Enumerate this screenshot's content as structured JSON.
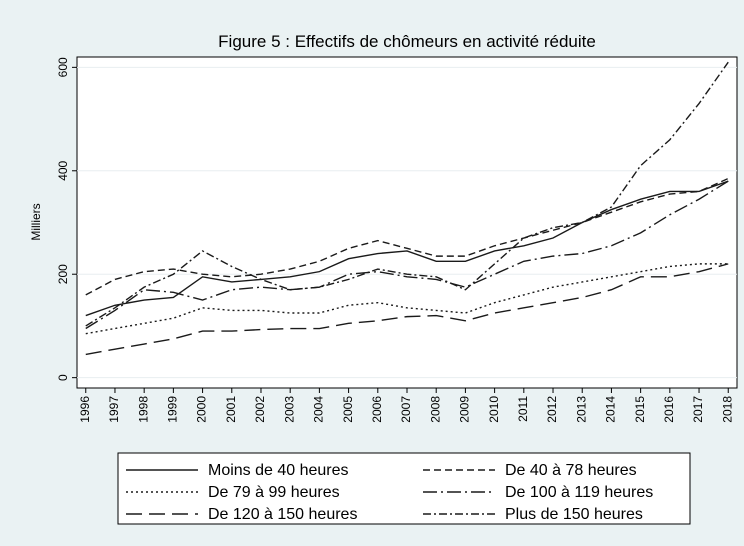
{
  "chart_data": {
    "type": "line",
    "title": "Figure 5 : Effectifs de chômeurs en activité réduite",
    "y_label": "Milliers",
    "x": [
      1996,
      1997,
      1998,
      1999,
      2000,
      2001,
      2002,
      2003,
      2004,
      2005,
      2006,
      2007,
      2008,
      2009,
      2010,
      2011,
      2012,
      2013,
      2014,
      2015,
      2016,
      2017,
      2018
    ],
    "xlim": [
      1995.7,
      2018.3
    ],
    "xticks": [
      1996,
      1997,
      1998,
      1999,
      2000,
      2001,
      2002,
      2003,
      2004,
      2005,
      2006,
      2007,
      2008,
      2009,
      2010,
      2011,
      2012,
      2013,
      2014,
      2015,
      2016,
      2017,
      2018
    ],
    "ylim": [
      -20,
      620
    ],
    "yticks": [
      0,
      200,
      400,
      600
    ],
    "grid": true,
    "legend": "bottom",
    "series": [
      {
        "name": "Moins de 40 heures",
        "color": "#1a1a1a",
        "dash": "none",
        "values": [
          120,
          140,
          150,
          155,
          195,
          185,
          190,
          195,
          205,
          230,
          240,
          245,
          225,
          225,
          245,
          255,
          270,
          300,
          325,
          345,
          360,
          360,
          380
        ]
      },
      {
        "name": "De 40 à 78 heures",
        "color": "#1a1a1a",
        "dash": "7 4",
        "values": [
          160,
          190,
          205,
          210,
          200,
          195,
          200,
          210,
          225,
          250,
          265,
          250,
          235,
          235,
          255,
          270,
          285,
          300,
          320,
          340,
          355,
          360,
          385
        ]
      },
      {
        "name": "De 79 à 99 heures",
        "color": "#1a1a1a",
        "dash": "2 3",
        "values": [
          85,
          95,
          105,
          115,
          135,
          130,
          130,
          125,
          125,
          140,
          145,
          135,
          130,
          125,
          145,
          160,
          175,
          185,
          195,
          205,
          215,
          220,
          220
        ]
      },
      {
        "name": "De 100 à 119 heures",
        "color": "#1a1a1a",
        "dash": "14 4 2 4",
        "values": [
          95,
          130,
          170,
          165,
          150,
          170,
          175,
          170,
          175,
          200,
          205,
          195,
          190,
          175,
          200,
          225,
          235,
          240,
          255,
          280,
          315,
          345,
          380
        ]
      },
      {
        "name": "De 120 à 150 heures",
        "color": "#1a1a1a",
        "dash": "16 7",
        "values": [
          45,
          55,
          65,
          75,
          90,
          90,
          93,
          95,
          95,
          105,
          110,
          118,
          120,
          110,
          125,
          135,
          145,
          155,
          170,
          195,
          195,
          205,
          220
        ]
      },
      {
        "name": "Plus de 150 heures",
        "color": "#1a1a1a",
        "dash": "8 3 2 3",
        "values": [
          100,
          135,
          175,
          200,
          245,
          215,
          190,
          170,
          175,
          190,
          210,
          200,
          195,
          170,
          220,
          270,
          290,
          300,
          330,
          410,
          460,
          530,
          610
        ]
      }
    ]
  }
}
